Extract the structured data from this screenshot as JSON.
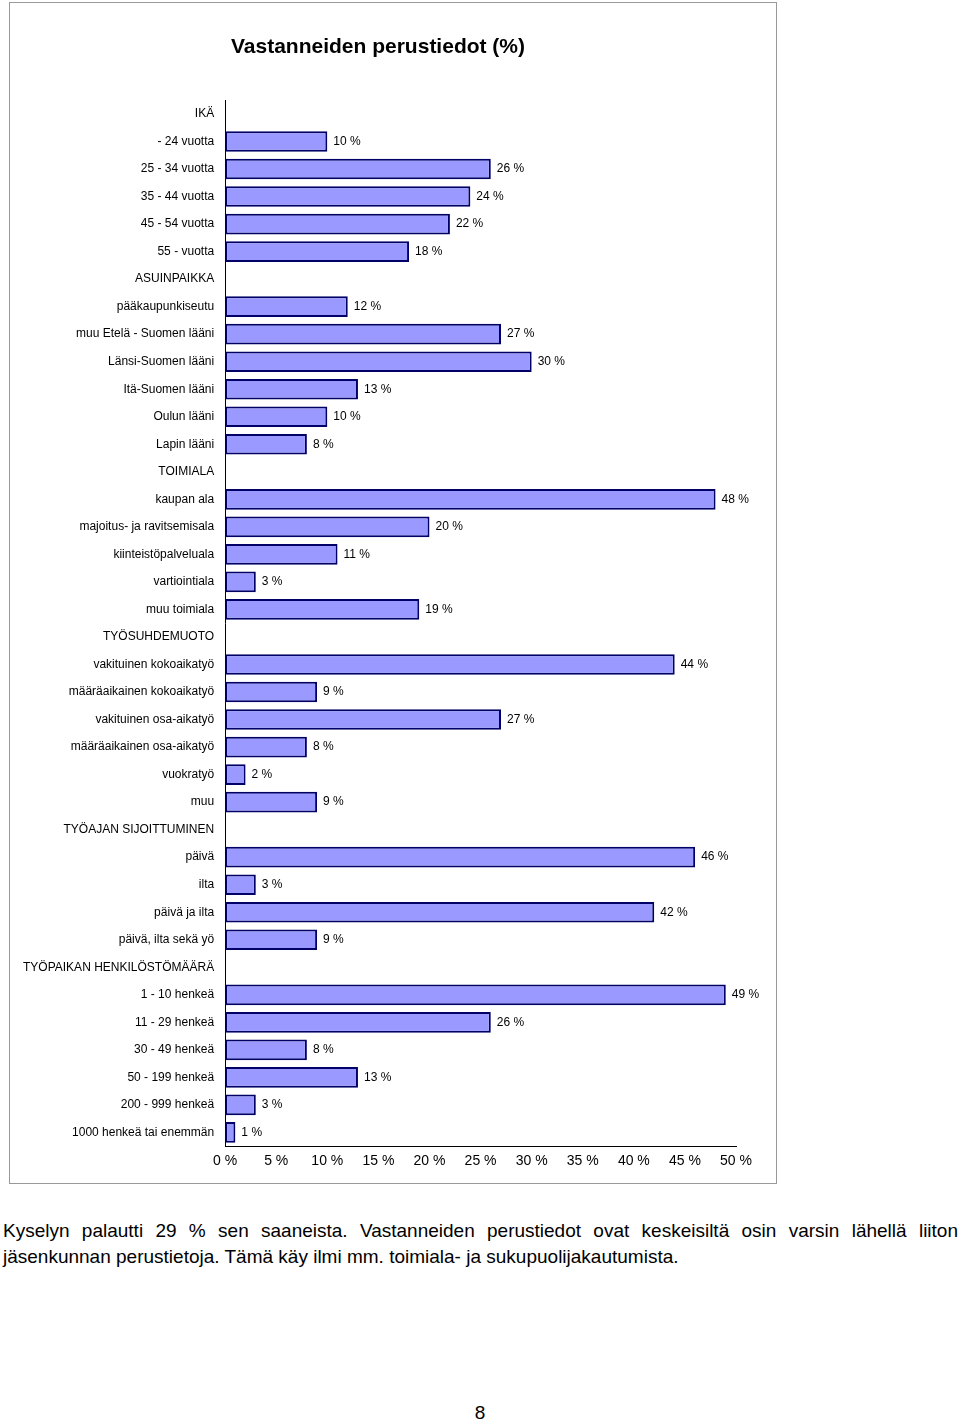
{
  "chart_data": {
    "type": "bar",
    "orientation": "horizontal",
    "title": "Vastanneiden perustiedot (%)",
    "categories": [
      "IKÄ",
      "- 24 vuotta",
      "25 - 34 vuotta",
      "35 - 44 vuotta",
      "45 - 54 vuotta",
      "55 - vuotta",
      "ASUINPAIKKA",
      "pääkaupunkiseutu",
      "muu Etelä - Suomen lääni",
      "Länsi-Suomen lääni",
      "Itä-Suomen lääni",
      "Oulun lääni",
      "Lapin lääni",
      "TOIMIALA",
      "kaupan ala",
      "majoitus- ja ravitsemisala",
      "kiinteistöpalveluala",
      "vartiointiala",
      "muu toimiala",
      "TYÖSUHDEMUOTO",
      "vakituinen kokoaikatyö",
      "määräaikainen kokoaikatyö",
      "vakituinen osa-aikatyö",
      "määräaikainen osa-aikatyö",
      "vuokratyö",
      "muu",
      "TYÖAJAN SIJOITTUMINEN",
      "päivä",
      "ilta",
      "päivä ja ilta",
      "päivä, ilta sekä yö",
      "TYÖPAIKAN HENKILÖSTÖMÄÄRÄ",
      "1 - 10 henkeä",
      "11 - 29 henkeä",
      "30 - 49 henkeä",
      "50 - 199 henkeä",
      "200 - 999 henkeä",
      "1000 henkeä tai enemmän"
    ],
    "values": [
      null,
      10,
      26,
      24,
      22,
      18,
      null,
      12,
      27,
      30,
      13,
      10,
      8,
      null,
      48,
      20,
      11,
      3,
      19,
      null,
      44,
      9,
      27,
      8,
      2,
      9,
      null,
      46,
      3,
      42,
      9,
      null,
      49,
      26,
      8,
      13,
      3,
      1
    ],
    "value_labels": [
      null,
      "10 %",
      "26 %",
      "24 %",
      "22 %",
      "18 %",
      null,
      "12 %",
      "27 %",
      "30 %",
      "13 %",
      "10 %",
      "8 %",
      null,
      "48 %",
      "20 %",
      "11 %",
      "3 %",
      "19 %",
      null,
      "44 %",
      "9 %",
      "27 %",
      "8 %",
      "2 %",
      "9 %",
      null,
      "46 %",
      "3 %",
      "42 %",
      "9 %",
      null,
      "49 %",
      "26 %",
      "8 %",
      "13 %",
      "3 %",
      "1 %"
    ],
    "color": "#9999ff",
    "data_labels": true,
    "grid": false,
    "xlim": [
      0,
      50
    ],
    "xticks": [
      {
        "value": 0,
        "label": "0 %"
      },
      {
        "value": 5,
        "label": "5 %"
      },
      {
        "value": 10,
        "label": "10 %"
      },
      {
        "value": 15,
        "label": "15 %"
      },
      {
        "value": 20,
        "label": "20 %"
      },
      {
        "value": 25,
        "label": "25 %"
      },
      {
        "value": 30,
        "label": "30 %"
      },
      {
        "value": 35,
        "label": "35 %"
      },
      {
        "value": 40,
        "label": "40 %"
      },
      {
        "value": 45,
        "label": "45 %"
      },
      {
        "value": 50,
        "label": "50 %"
      }
    ]
  },
  "text": {
    "paragraph": "Kyselyn palautti 29 % sen saaneista. Vastanneiden perustiedot ovat keskeisiltä osin varsin lähellä liiton jäsenkunnan perustietoja. Tämä käy ilmi mm. toimiala- ja sukupuolijakautumista.",
    "page_number": "8"
  }
}
